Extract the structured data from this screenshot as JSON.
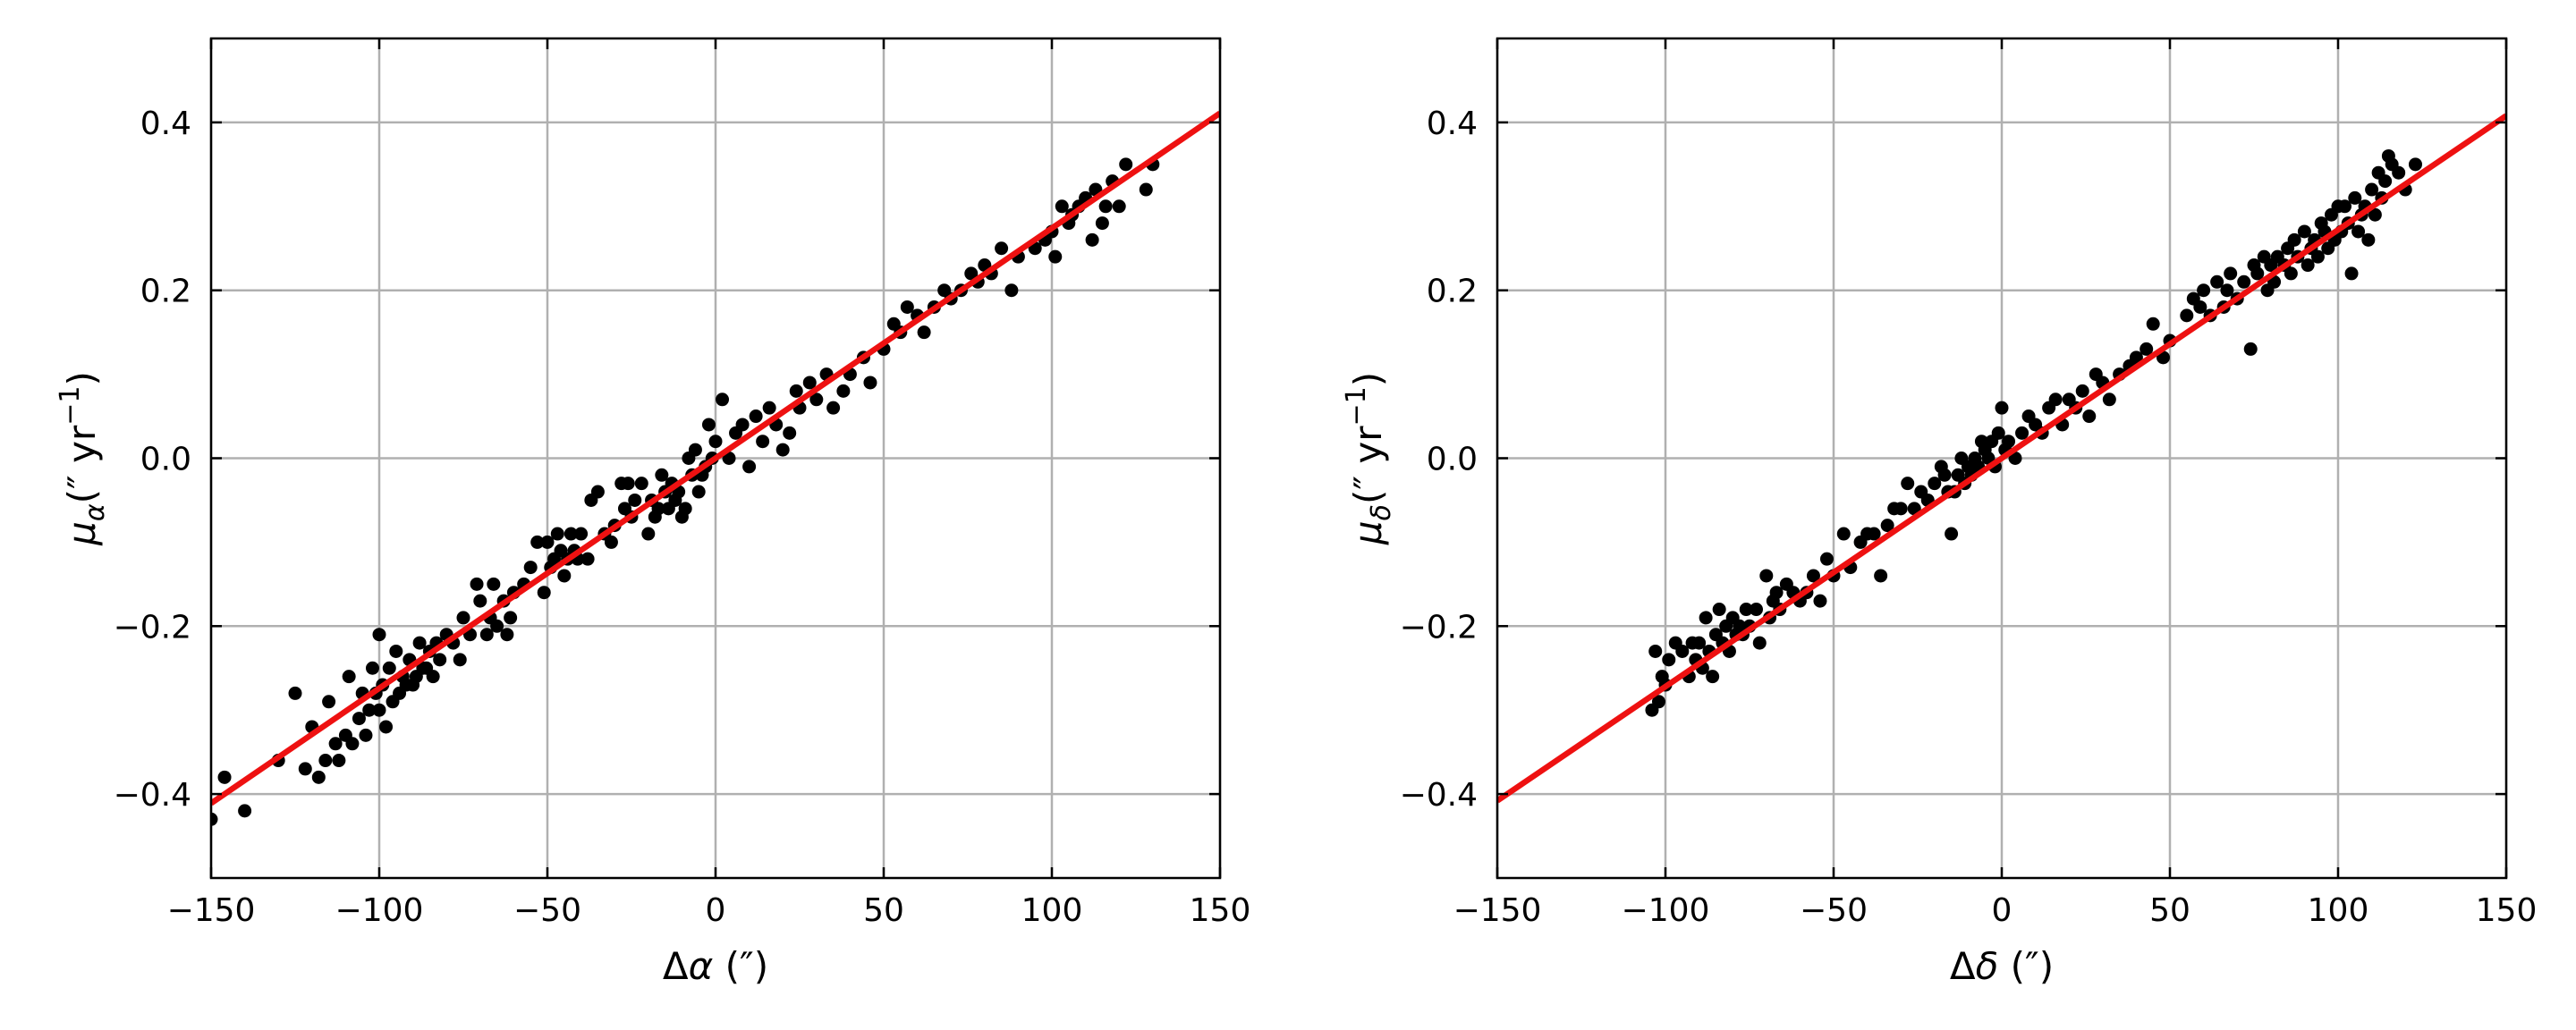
{
  "colors": {
    "points": "#000000",
    "fit_line": "#ee1111",
    "grid": "#b0b0b0",
    "frame": "#000000"
  },
  "chart_data": [
    {
      "type": "scatter",
      "xlabel": {
        "main": "Δ",
        "symbol": "α",
        "unit": " (″)"
      },
      "ylabel": {
        "main": "μ",
        "sub": "α",
        "unit_open": "(″ yr",
        "sup": "−1",
        "unit_close": ")"
      },
      "xlim": [
        -150,
        150
      ],
      "ylim": [
        -0.5,
        0.5
      ],
      "xticks": [
        -150,
        -100,
        -50,
        0,
        50,
        100,
        150
      ],
      "xtick_labels": [
        "−150",
        "−100",
        "−50",
        "0",
        "50",
        "100",
        "150"
      ],
      "yticks": [
        -0.4,
        -0.2,
        0.0,
        0.2,
        0.4
      ],
      "ytick_labels": [
        "−0.4",
        "−0.2",
        "0.0",
        "0.2",
        "0.4"
      ],
      "grid": true,
      "fit_line": {
        "slope": 0.00274,
        "intercept": 0.0
      },
      "series": [
        {
          "x": [
            -150,
            -146,
            -140,
            -130,
            -125,
            -122,
            -120,
            -118,
            -116,
            -115,
            -113,
            -112,
            -110,
            -109,
            -108,
            -106,
            -105,
            -104,
            -103,
            -102,
            -101,
            -100,
            -100,
            -99,
            -98,
            -97,
            -96,
            -95,
            -94,
            -93,
            -92,
            -91,
            -90,
            -89,
            -88,
            -87,
            -86,
            -85,
            -84,
            -83,
            -82,
            -80,
            -78,
            -76,
            -75,
            -73,
            -71,
            -70,
            -68,
            -67,
            -66,
            -65,
            -63,
            -62,
            -61,
            -60,
            -57,
            -55,
            -53,
            -51,
            -50,
            -49,
            -48,
            -47,
            -46,
            -45,
            -44,
            -43,
            -42,
            -41,
            -40,
            -38,
            -37,
            -35,
            -33,
            -31,
            -30,
            -28,
            -27,
            -26,
            -25,
            -24,
            -22,
            -20,
            -19,
            -18,
            -17,
            -16,
            -15,
            -14,
            -13,
            -12,
            -11,
            -10,
            -9,
            -8,
            -7,
            -6,
            -5,
            -4,
            -3,
            -2,
            -1,
            0,
            2,
            4,
            6,
            8,
            10,
            12,
            14,
            16,
            18,
            20,
            22,
            24,
            25,
            28,
            30,
            33,
            35,
            38,
            40,
            44,
            46,
            50,
            53,
            55,
            57,
            60,
            62,
            65,
            68,
            70,
            73,
            76,
            78,
            80,
            82,
            85,
            88,
            90,
            95,
            98,
            100,
            101,
            103,
            105,
            106,
            108,
            110,
            112,
            113,
            115,
            116,
            118,
            120,
            122,
            128,
            130
          ],
          "y": [
            -0.43,
            -0.38,
            -0.42,
            -0.36,
            -0.28,
            -0.37,
            -0.32,
            -0.38,
            -0.36,
            -0.29,
            -0.34,
            -0.36,
            -0.33,
            -0.26,
            -0.34,
            -0.31,
            -0.28,
            -0.33,
            -0.3,
            -0.25,
            -0.28,
            -0.21,
            -0.3,
            -0.27,
            -0.32,
            -0.25,
            -0.29,
            -0.23,
            -0.28,
            -0.26,
            -0.27,
            -0.24,
            -0.27,
            -0.26,
            -0.22,
            -0.25,
            -0.25,
            -0.23,
            -0.26,
            -0.22,
            -0.24,
            -0.21,
            -0.22,
            -0.24,
            -0.19,
            -0.21,
            -0.15,
            -0.17,
            -0.21,
            -0.19,
            -0.15,
            -0.2,
            -0.17,
            -0.21,
            -0.19,
            -0.16,
            -0.15,
            -0.13,
            -0.1,
            -0.16,
            -0.1,
            -0.13,
            -0.12,
            -0.09,
            -0.11,
            -0.14,
            -0.12,
            -0.09,
            -0.11,
            -0.12,
            -0.09,
            -0.12,
            -0.05,
            -0.04,
            -0.09,
            -0.1,
            -0.08,
            -0.03,
            -0.06,
            -0.03,
            -0.07,
            -0.05,
            -0.03,
            -0.09,
            -0.05,
            -0.07,
            -0.06,
            -0.02,
            -0.04,
            -0.06,
            -0.03,
            -0.05,
            -0.04,
            -0.07,
            -0.06,
            0.0,
            -0.02,
            0.01,
            -0.04,
            -0.02,
            -0.01,
            0.04,
            0.0,
            0.02,
            0.07,
            0.0,
            0.03,
            0.04,
            -0.01,
            0.05,
            0.02,
            0.06,
            0.04,
            0.01,
            0.03,
            0.08,
            0.06,
            0.09,
            0.07,
            0.1,
            0.06,
            0.08,
            0.1,
            0.12,
            0.09,
            0.13,
            0.16,
            0.15,
            0.18,
            0.17,
            0.15,
            0.18,
            0.2,
            0.19,
            0.2,
            0.22,
            0.21,
            0.23,
            0.22,
            0.25,
            0.2,
            0.24,
            0.25,
            0.26,
            0.27,
            0.24,
            0.3,
            0.28,
            0.29,
            0.3,
            0.31,
            0.26,
            0.32,
            0.28,
            0.3,
            0.33,
            0.3,
            0.35,
            0.32,
            0.35
          ]
        }
      ]
    },
    {
      "type": "scatter",
      "xlabel": {
        "main": "Δ",
        "symbol": "δ",
        "unit": " (″)"
      },
      "ylabel": {
        "main": "μ",
        "sub": "δ",
        "unit_open": "(″ yr",
        "sup": "−1",
        "unit_close": ")"
      },
      "xlim": [
        -150,
        150
      ],
      "ylim": [
        -0.5,
        0.5
      ],
      "xticks": [
        -150,
        -100,
        -50,
        0,
        50,
        100,
        150
      ],
      "xtick_labels": [
        "−150",
        "−100",
        "−50",
        "0",
        "50",
        "100",
        "150"
      ],
      "yticks": [
        -0.4,
        -0.2,
        0.0,
        0.2,
        0.4
      ],
      "ytick_labels": [
        "−0.4",
        "−0.2",
        "0.0",
        "0.2",
        "0.4"
      ],
      "grid": true,
      "fit_line": {
        "slope": 0.00272,
        "intercept": 0.0
      },
      "series": [
        {
          "x": [
            -104,
            -103,
            -102,
            -101,
            -100,
            -99,
            -97,
            -95,
            -93,
            -92,
            -91,
            -90,
            -89,
            -88,
            -87,
            -86,
            -85,
            -84,
            -83,
            -82,
            -81,
            -80,
            -79,
            -78,
            -77,
            -76,
            -75,
            -73,
            -72,
            -70,
            -69,
            -68,
            -67,
            -66,
            -64,
            -62,
            -60,
            -58,
            -56,
            -54,
            -52,
            -50,
            -47,
            -45,
            -42,
            -40,
            -38,
            -36,
            -34,
            -32,
            -30,
            -28,
            -26,
            -24,
            -22,
            -20,
            -18,
            -17,
            -16,
            -15,
            -14,
            -13,
            -12,
            -11,
            -10,
            -9,
            -8,
            -7,
            -6,
            -5,
            -4,
            -3,
            -2,
            -1,
            0,
            1,
            2,
            4,
            6,
            8,
            10,
            12,
            14,
            16,
            18,
            20,
            22,
            24,
            26,
            28,
            30,
            32,
            35,
            38,
            40,
            43,
            45,
            48,
            50,
            55,
            57,
            59,
            60,
            62,
            64,
            66,
            67,
            68,
            70,
            72,
            74,
            75,
            76,
            78,
            79,
            80,
            81,
            82,
            84,
            85,
            86,
            87,
            88,
            90,
            91,
            92,
            93,
            94,
            95,
            96,
            97,
            98,
            99,
            100,
            101,
            102,
            103,
            104,
            105,
            106,
            107,
            108,
            109,
            110,
            111,
            112,
            113,
            114,
            115,
            116,
            118,
            120,
            123
          ],
          "y": [
            -0.3,
            -0.23,
            -0.29,
            -0.26,
            -0.27,
            -0.24,
            -0.22,
            -0.23,
            -0.26,
            -0.22,
            -0.24,
            -0.22,
            -0.25,
            -0.19,
            -0.23,
            -0.26,
            -0.21,
            -0.18,
            -0.22,
            -0.2,
            -0.23,
            -0.19,
            -0.21,
            -0.2,
            -0.21,
            -0.18,
            -0.2,
            -0.18,
            -0.22,
            -0.14,
            -0.19,
            -0.17,
            -0.16,
            -0.18,
            -0.15,
            -0.16,
            -0.17,
            -0.16,
            -0.14,
            -0.17,
            -0.12,
            -0.14,
            -0.09,
            -0.13,
            -0.1,
            -0.09,
            -0.09,
            -0.14,
            -0.08,
            -0.06,
            -0.06,
            -0.03,
            -0.06,
            -0.04,
            -0.05,
            -0.03,
            -0.01,
            -0.02,
            -0.04,
            -0.09,
            -0.04,
            -0.02,
            0.0,
            -0.03,
            -0.01,
            -0.02,
            0.0,
            -0.01,
            0.02,
            0.01,
            0.0,
            0.02,
            -0.01,
            0.03,
            0.06,
            0.01,
            0.02,
            0.0,
            0.03,
            0.05,
            0.04,
            0.03,
            0.06,
            0.07,
            0.04,
            0.07,
            0.06,
            0.08,
            0.05,
            0.1,
            0.09,
            0.07,
            0.1,
            0.11,
            0.12,
            0.13,
            0.16,
            0.12,
            0.14,
            0.17,
            0.19,
            0.18,
            0.2,
            0.17,
            0.21,
            0.18,
            0.2,
            0.22,
            0.19,
            0.21,
            0.13,
            0.23,
            0.22,
            0.24,
            0.2,
            0.23,
            0.21,
            0.24,
            0.23,
            0.25,
            0.22,
            0.26,
            0.24,
            0.27,
            0.23,
            0.25,
            0.26,
            0.24,
            0.28,
            0.27,
            0.25,
            0.29,
            0.26,
            0.3,
            0.27,
            0.3,
            0.28,
            0.22,
            0.31,
            0.27,
            0.29,
            0.3,
            0.26,
            0.32,
            0.29,
            0.34,
            0.31,
            0.33,
            0.36,
            0.35,
            0.34,
            0.32,
            0.35
          ]
        }
      ]
    }
  ]
}
